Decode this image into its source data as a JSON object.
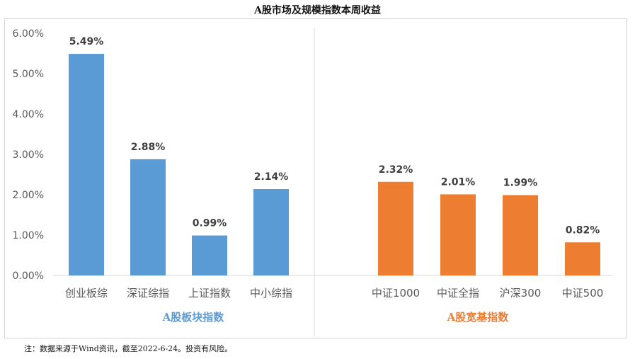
{
  "chart_data": {
    "type": "bar",
    "title": "A股市场及规模指数本周收益",
    "ylim": [
      0,
      6
    ],
    "yticks": [
      "0.00%",
      "1.00%",
      "2.00%",
      "3.00%",
      "4.00%",
      "5.00%",
      "6.00%"
    ],
    "grid": false,
    "groups": [
      {
        "name": "A股板块指数",
        "color": "#5b9bd5",
        "categories": [
          "创业板综",
          "深证综指",
          "上证指数",
          "中小综指"
        ],
        "values": [
          5.49,
          2.88,
          0.99,
          2.14
        ],
        "labels": [
          "5.49%",
          "2.88%",
          "0.99%",
          "2.14%"
        ]
      },
      {
        "name": "A股宽基指数",
        "color": "#ed7d31",
        "categories": [
          "中证1000",
          "中证全指",
          "沪深300",
          "中证500"
        ],
        "values": [
          2.32,
          2.01,
          1.99,
          0.82
        ],
        "labels": [
          "2.32%",
          "2.01%",
          "1.99%",
          "0.82%"
        ]
      }
    ]
  },
  "footnote": "注：数据来源于Wind资讯，截至2022-6-24。投资有风险。"
}
